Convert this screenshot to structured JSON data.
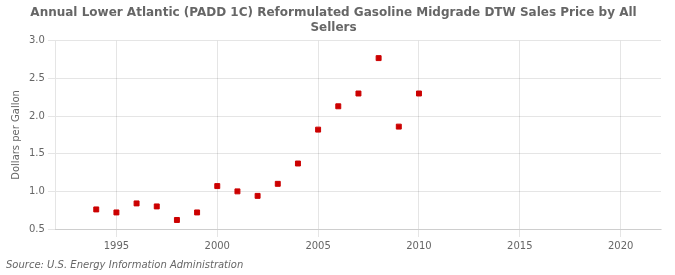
{
  "chart_data": {
    "type": "scatter",
    "title": "Annual Lower Atlantic (PADD 1C) Reformulated Gasoline Midgrade DTW Sales Price by All\nSellers",
    "ylabel": "Dollars per Gallon",
    "annotation": "Source: U.S. Energy Information Administration",
    "x": [
      1994,
      1995,
      1996,
      1997,
      1998,
      1999,
      2000,
      2001,
      2002,
      2003,
      2004,
      2005,
      2006,
      2007,
      2008,
      2009,
      2010
    ],
    "values": [
      0.76,
      0.72,
      0.84,
      0.8,
      0.62,
      0.72,
      1.07,
      1.0,
      0.94,
      1.1,
      1.37,
      1.82,
      2.13,
      2.3,
      2.77,
      1.86,
      2.3
    ],
    "color": "#cc0000",
    "marker": "square",
    "xlim": [
      1992,
      2022
    ],
    "ylim": [
      0.5,
      3.0
    ],
    "xticks": [
      1995,
      2000,
      2005,
      2010,
      2015,
      2020
    ],
    "yticks": [
      0.5,
      {
        "value": 1.0,
        "label": "1.0"
      },
      1.5,
      {
        "value": 2.0,
        "label": "2.0"
      },
      2.5,
      {
        "value": 3.0,
        "label": "3.0"
      }
    ],
    "grid": true
  }
}
